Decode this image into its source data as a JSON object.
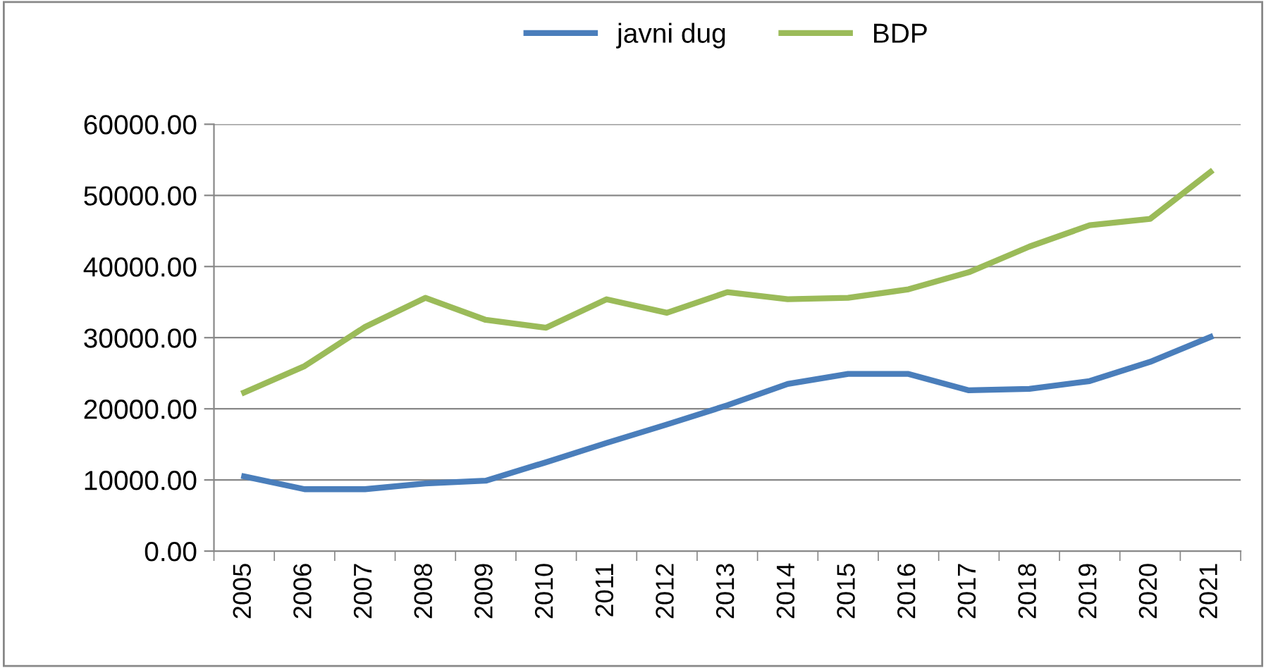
{
  "chart_data": {
    "type": "line",
    "categories": [
      "2005",
      "2006",
      "2007",
      "2008",
      "2009",
      "2010",
      "2011",
      "2012",
      "2013",
      "2014",
      "2015",
      "2016",
      "2017",
      "2018",
      "2019",
      "2020",
      "2021"
    ],
    "series": [
      {
        "name": "javni dug",
        "color": "#4a7ebb",
        "values": [
          10500,
          8700,
          8700,
          9500,
          9900,
          12500,
          15200,
          17800,
          20500,
          23500,
          24900,
          24900,
          22600,
          22800,
          23900,
          26600,
          30100
        ]
      },
      {
        "name": "BDP",
        "color": "#9bbb59",
        "values": [
          22300,
          26000,
          31500,
          35600,
          32500,
          31400,
          35400,
          33500,
          36400,
          35400,
          35600,
          36800,
          39200,
          42800,
          45800,
          46700,
          53300
        ]
      }
    ],
    "ylim": [
      0,
      60000
    ],
    "yticks": [
      {
        "value": 0,
        "label": "0.00"
      },
      {
        "value": 10000,
        "label": "10000.00"
      },
      {
        "value": 20000,
        "label": "20000.00"
      },
      {
        "value": 30000,
        "label": "30000.00"
      },
      {
        "value": 40000,
        "label": "40000.00"
      },
      {
        "value": 50000,
        "label": "50000.00"
      },
      {
        "value": 60000,
        "label": "60000.00"
      }
    ],
    "grid": "y",
    "legend": "top",
    "marker": "none",
    "line_style": "solid"
  }
}
